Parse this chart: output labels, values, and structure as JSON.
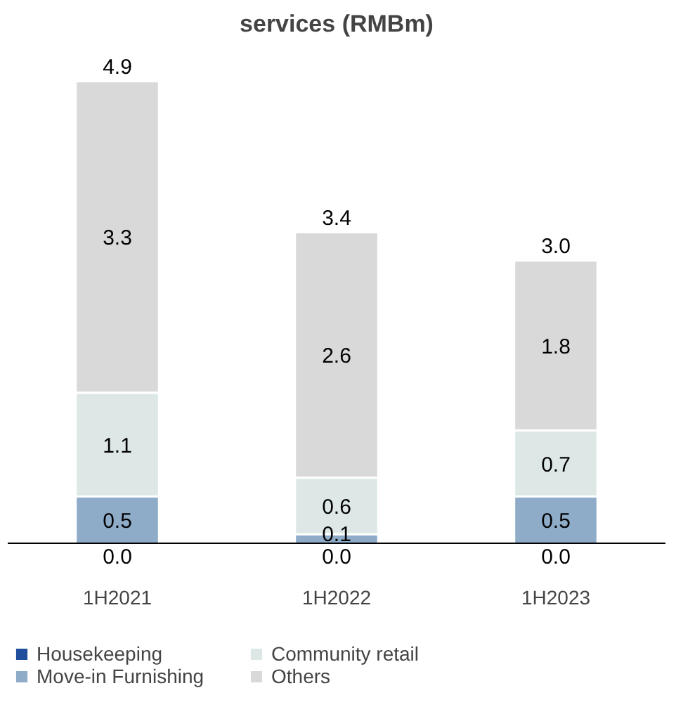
{
  "chart_data": {
    "type": "bar",
    "stacked": true,
    "title": "services (RMBm)",
    "categories": [
      "1H2021",
      "1H2022",
      "1H2023"
    ],
    "series": [
      {
        "name": "Housekeeping",
        "color": "#1f4e9c",
        "values": [
          0.0,
          0.0,
          0.0
        ],
        "value_labels": [
          "0.0",
          "0.0",
          "0.0"
        ]
      },
      {
        "name": "Move-in Furnishing",
        "color": "#8eacc8",
        "values": [
          0.5,
          0.1,
          0.5
        ],
        "value_labels": [
          "0.5",
          "0.1",
          "0.5"
        ]
      },
      {
        "name": "Community retail",
        "color": "#dde8e6",
        "values": [
          1.1,
          0.6,
          0.7
        ],
        "value_labels": [
          "1.1",
          "0.6",
          "0.7"
        ]
      },
      {
        "name": "Others",
        "color": "#d9d9d9",
        "values": [
          3.3,
          2.6,
          1.8
        ],
        "value_labels": [
          "3.3",
          "2.6",
          "1.8"
        ]
      }
    ],
    "totals": [
      "4.9",
      "3.4",
      "3.0"
    ],
    "legend": "bottom",
    "grid": false
  }
}
